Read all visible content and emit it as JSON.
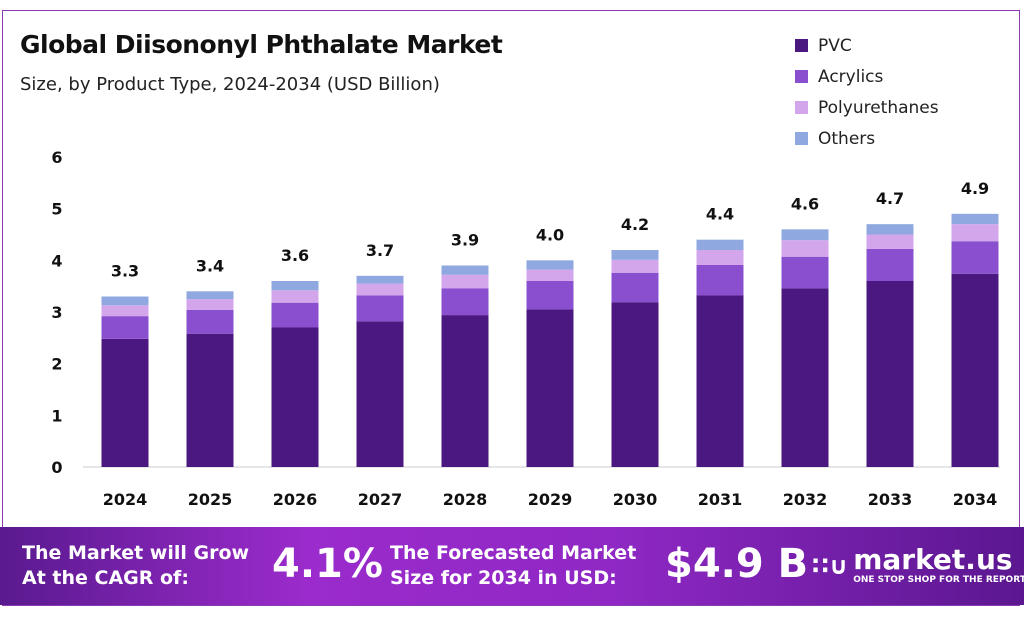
{
  "chart_data": {
    "type": "bar",
    "stacked": true,
    "title": "Global Diisononyl Phthalate Market",
    "subtitle": "Size, by Product Type, 2024-2034 (USD Billion)",
    "categories": [
      "2024",
      "2025",
      "2026",
      "2027",
      "2028",
      "2029",
      "2030",
      "2031",
      "2032",
      "2033",
      "2034"
    ],
    "series": [
      {
        "name": "PVC",
        "color": "#4b1780",
        "values": [
          2.48,
          2.58,
          2.7,
          2.82,
          2.94,
          3.05,
          3.19,
          3.32,
          3.46,
          3.6,
          3.74
        ]
      },
      {
        "name": "Acrylics",
        "color": "#8a4fcf",
        "values": [
          0.44,
          0.46,
          0.48,
          0.5,
          0.52,
          0.55,
          0.57,
          0.59,
          0.61,
          0.62,
          0.63
        ]
      },
      {
        "name": "Polyurethanes",
        "color": "#d3a6ec",
        "values": [
          0.21,
          0.21,
          0.24,
          0.23,
          0.26,
          0.22,
          0.25,
          0.29,
          0.32,
          0.28,
          0.33
        ]
      },
      {
        "name": "Others",
        "color": "#8fa8e0",
        "values": [
          0.17,
          0.15,
          0.18,
          0.15,
          0.18,
          0.18,
          0.19,
          0.2,
          0.21,
          0.2,
          0.2
        ]
      }
    ],
    "totals": [
      "3.3",
      "3.4",
      "3.6",
      "3.7",
      "3.9",
      "4.0",
      "4.2",
      "4.4",
      "4.6",
      "4.7",
      "4.9"
    ],
    "ylim": [
      0,
      6
    ],
    "yticks": [
      "0",
      "1",
      "2",
      "3",
      "4",
      "5",
      "6"
    ],
    "grid": false,
    "legend": "top-right"
  },
  "footer": {
    "cagr_label_1": "The Market will Grow",
    "cagr_label_2": "At the CAGR of:",
    "cagr_value": "4.1%",
    "forecast_label_1": "The Forecasted Market",
    "forecast_label_2": "Size for 2034 in USD:",
    "forecast_value": "$4.9 B",
    "logo_name": "market.us",
    "logo_tagline": "ONE STOP SHOP FOR THE REPORTS"
  }
}
